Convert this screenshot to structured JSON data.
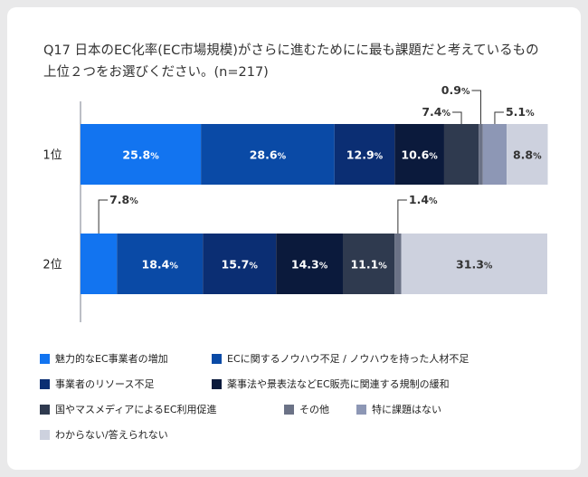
{
  "title": "Q17 日本のEC化率(EC市場規模)がさらに進むためにに最も課題だと考えているもの上位２つをお選びください。(n=217)",
  "chart_data": {
    "type": "bar",
    "stacked": true,
    "orientation": "horizontal",
    "categories": [
      "1位",
      "2位"
    ],
    "series": [
      {
        "name": "魅力的なEC事業者の増加",
        "color": "#1274f0",
        "values": [
          25.8,
          7.8
        ]
      },
      {
        "name": "ECに関するノウハウ不足 / ノウハウを持った人材不足",
        "color": "#0a4aa6",
        "values": [
          28.6,
          18.4
        ]
      },
      {
        "name": "事業者のリソース不足",
        "color": "#0b2e73",
        "values": [
          12.9,
          15.7
        ]
      },
      {
        "name": "薬事法や景表法などEC販売に関連する規制の緩和",
        "color": "#0b1a3c",
        "values": [
          10.6,
          14.3
        ]
      },
      {
        "name": "国やマスメディアによるEC利用促進",
        "color": "#2f3a4f",
        "values": [
          7.4,
          11.1
        ]
      },
      {
        "name": "その他",
        "color": "#6b7286",
        "values": [
          0.9,
          1.4
        ]
      },
      {
        "name": "特に課題はない",
        "color": "#8d97b5",
        "values": [
          5.1,
          0
        ]
      },
      {
        "name": "わからない/答えられない",
        "color": "#cdd1de",
        "values": [
          8.8,
          31.3
        ]
      }
    ],
    "value_suffix": "%",
    "xlim": [
      0,
      100
    ],
    "legend_position": "bottom"
  }
}
